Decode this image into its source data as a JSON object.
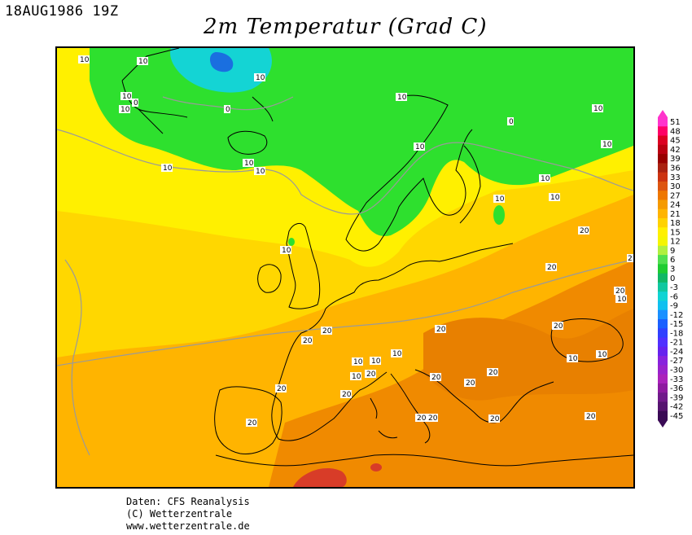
{
  "header": {
    "timestamp": "18AUG1986 19Z",
    "title": "2m Temperatur (Grad C)"
  },
  "map": {
    "region": "Europe and North Atlantic",
    "palette": {
      "cold_green": "#2ee02e",
      "light_green": "#8fe84a",
      "cyan": "#14d4d4",
      "blue": "#1a6fe0",
      "yellow": "#fff000",
      "yellow_orange": "#ffd700",
      "orange": "#ffb400",
      "deep_orange": "#f08a00",
      "red_orange": "#e06400",
      "red": "#d83c28",
      "land_outline": "#000000",
      "isotherm": "#9a9a9a"
    },
    "contour_labels": [
      {
        "text": "10"
      },
      {
        "text": "10"
      },
      {
        "text": "10"
      },
      {
        "text": "10"
      },
      {
        "text": "0"
      },
      {
        "text": "10"
      },
      {
        "text": "0"
      },
      {
        "text": "10"
      },
      {
        "text": "10"
      },
      {
        "text": "10"
      },
      {
        "text": "10"
      },
      {
        "text": "10"
      },
      {
        "text": "10"
      },
      {
        "text": "0"
      },
      {
        "text": "10"
      },
      {
        "text": "10"
      },
      {
        "text": "10"
      },
      {
        "text": "10"
      },
      {
        "text": "10"
      },
      {
        "text": "20"
      },
      {
        "text": "10"
      },
      {
        "text": "20"
      },
      {
        "text": "20"
      },
      {
        "text": "20"
      },
      {
        "text": "20"
      },
      {
        "text": "20"
      },
      {
        "text": "10"
      },
      {
        "text": "10"
      },
      {
        "text": "10"
      },
      {
        "text": "10"
      },
      {
        "text": "20"
      },
      {
        "text": "20"
      },
      {
        "text": "20"
      },
      {
        "text": "20"
      },
      {
        "text": "20"
      },
      {
        "text": "20"
      },
      {
        "text": "20"
      },
      {
        "text": "20"
      },
      {
        "text": "10"
      },
      {
        "text": "10"
      },
      {
        "text": "20"
      },
      {
        "text": "20"
      },
      {
        "text": "20"
      },
      {
        "text": "20"
      },
      {
        "text": "2"
      }
    ]
  },
  "legend": {
    "unit": "Grad C",
    "ticks": [
      "51",
      "48",
      "45",
      "42",
      "39",
      "36",
      "33",
      "30",
      "27",
      "24",
      "21",
      "18",
      "15",
      "12",
      "9",
      "6",
      "3",
      "0",
      "-3",
      "-6",
      "-9",
      "-12",
      "-15",
      "-18",
      "-21",
      "-24",
      "-27",
      "-30",
      "-33",
      "-36",
      "-39",
      "-42",
      "-45"
    ],
    "colors": [
      "#ff33cc",
      "#ff0066",
      "#dd0022",
      "#bb0011",
      "#990000",
      "#aa2211",
      "#cc3311",
      "#dd5511",
      "#ee7700",
      "#f59a00",
      "#ffb400",
      "#ffd200",
      "#fff000",
      "#f5f500",
      "#b0f040",
      "#50e050",
      "#1ecc32",
      "#10b866",
      "#10c8a0",
      "#10d4d4",
      "#10c0f0",
      "#1a90ff",
      "#1a60ff",
      "#3040ff",
      "#5030ff",
      "#6622ee",
      "#8822dd",
      "#9922cc",
      "#aa22bb",
      "#8e1aa0",
      "#701a8a",
      "#561470",
      "#3a0a55"
    ]
  },
  "footer": {
    "line1": "Daten: CFS Reanalysis",
    "line2": "(C) Wetterzentrale",
    "line3": "www.wetterzentrale.de"
  }
}
